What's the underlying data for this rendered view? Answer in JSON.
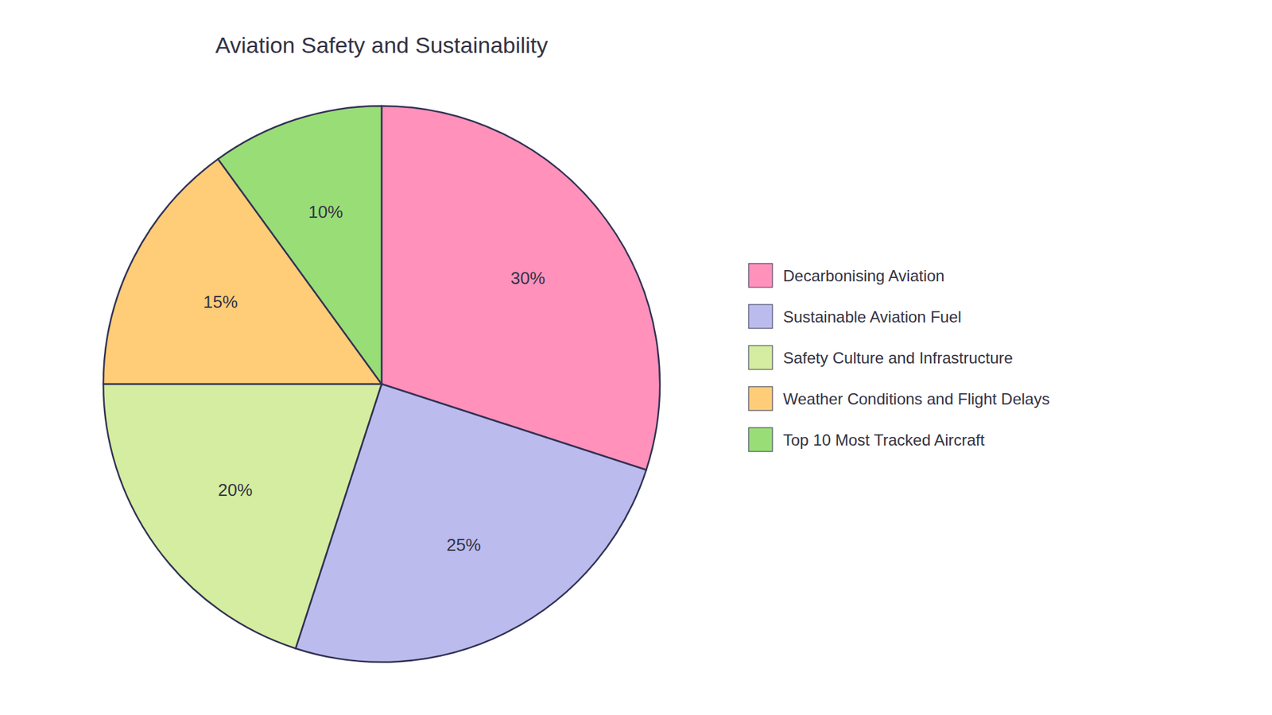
{
  "chart_data": {
    "type": "pie",
    "title": "Aviation Safety and Sustainability",
    "categories": [
      "Decarbonising Aviation",
      "Sustainable Aviation Fuel",
      "Safety Culture and Infrastructure",
      "Weather Conditions and Flight Delays",
      "Top 10 Most Tracked Aircraft"
    ],
    "values": [
      30,
      25,
      20,
      15,
      10
    ],
    "value_labels": [
      "30%",
      "25%",
      "20%",
      "15%",
      "10%"
    ],
    "colors": [
      "#FF91BB",
      "#BBBBEE",
      "#D4EDA0",
      "#FFCC77",
      "#99DD77"
    ],
    "data_labels": true,
    "legend": "right"
  }
}
